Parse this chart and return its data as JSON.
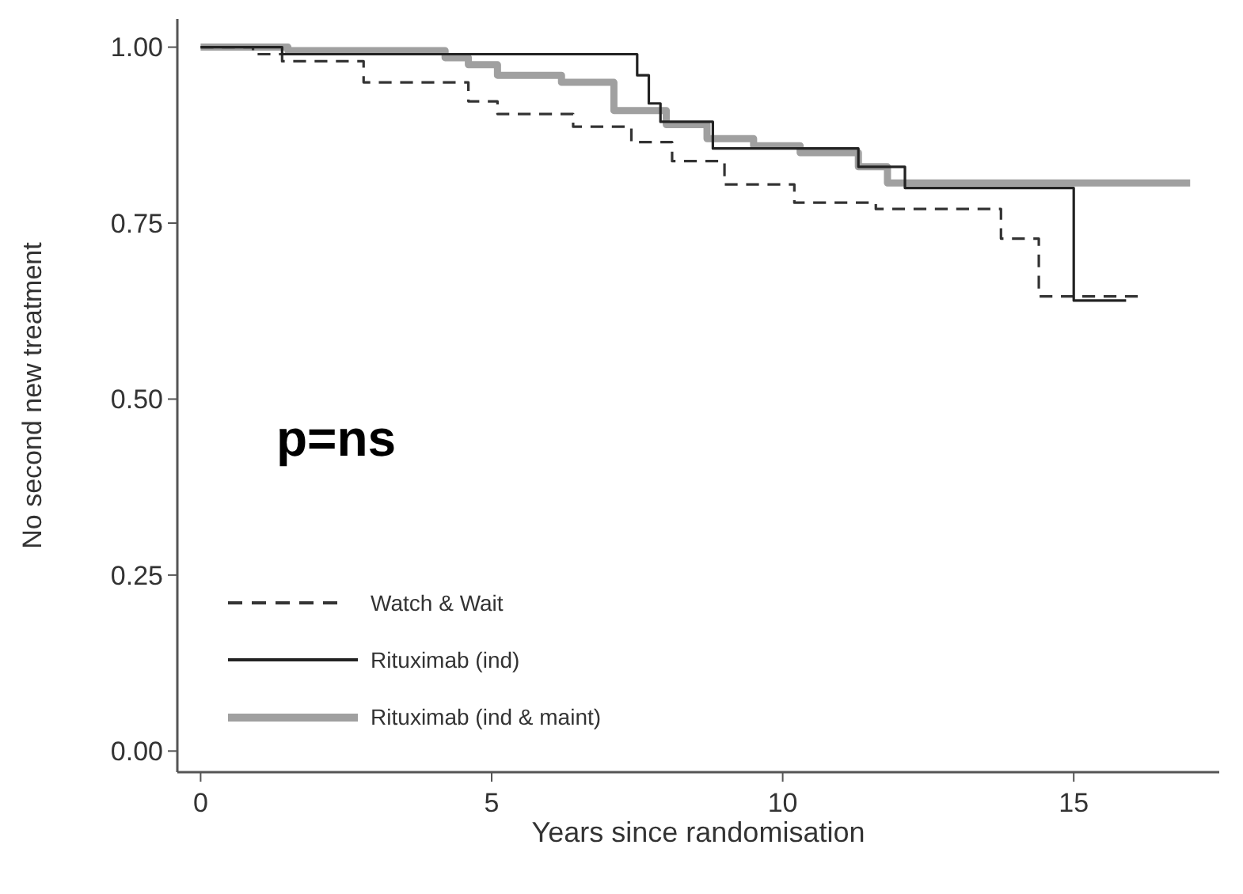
{
  "chart_data": {
    "type": "step",
    "xlabel": "Years since randomisation",
    "ylabel": "No second new treatment",
    "xlim": [
      -0.4,
      17.5
    ],
    "ylim": [
      -0.03,
      1.04
    ],
    "xticks": [
      0,
      5,
      10,
      15
    ],
    "yticks": [
      {
        "value": 0,
        "label": "0.00"
      },
      {
        "value": 0.25,
        "label": "0.25"
      },
      {
        "value": 0.5,
        "label": "0.50"
      },
      {
        "value": 0.75,
        "label": "0.75"
      },
      {
        "value": 1,
        "label": "1.00"
      }
    ],
    "grid": false,
    "legend": "bottom left",
    "annotations": [
      "p=ns"
    ],
    "series": [
      {
        "name": "Watch & Wait",
        "color": "#333333",
        "line_style": "dashed",
        "x": [
          0,
          0.9,
          1.4,
          2.8,
          4.6,
          5.1,
          6.4,
          7.4,
          8.1,
          9.0,
          10.2,
          11.6,
          13.75,
          14.4,
          16.1
        ],
        "values": [
          1,
          0.99,
          0.98,
          0.95,
          0.923,
          0.905,
          0.887,
          0.865,
          0.838,
          0.805,
          0.779,
          0.77,
          0.728,
          0.646,
          0.646
        ]
      },
      {
        "name": "Rituximab (ind)",
        "color": "#222222",
        "line_style": "solid",
        "x": [
          0,
          1.4,
          7.5,
          7.7,
          7.9,
          8.8,
          11.3,
          12.1,
          15.0,
          15.9
        ],
        "values": [
          1,
          0.99,
          0.96,
          0.92,
          0.894,
          0.856,
          0.83,
          0.8,
          0.64,
          0.64
        ]
      },
      {
        "name": "Rituximab (ind & maint)",
        "color": "#a0a0a0",
        "line_style": "solid",
        "x": [
          0,
          1.5,
          4.2,
          4.6,
          5.1,
          6.2,
          7.1,
          8.0,
          8.7,
          9.5,
          10.3,
          11.3,
          11.8,
          17.0
        ],
        "values": [
          1,
          0.995,
          0.985,
          0.975,
          0.96,
          0.95,
          0.91,
          0.89,
          0.87,
          0.86,
          0.85,
          0.83,
          0.807,
          0.807
        ]
      }
    ]
  }
}
